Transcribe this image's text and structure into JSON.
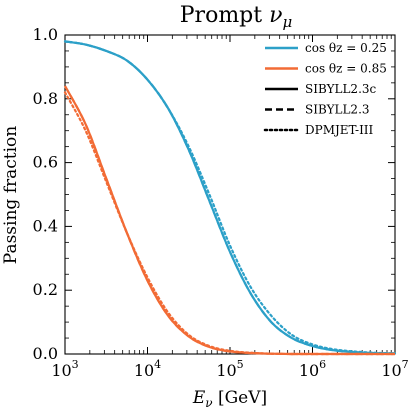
{
  "chart_data": {
    "type": "line",
    "title": "Prompt",
    "title_symbol": "ν",
    "title_subscript": "μ",
    "xlabel": "E",
    "xlabel_subscript": "ν",
    "xlabel_unit": " [GeV]",
    "ylabel": "Passing fraction",
    "xscale": "log",
    "xlim": [
      1000,
      10000000
    ],
    "ylim": [
      0.0,
      1.0
    ],
    "grid": false,
    "legend_position": "top-right",
    "x_ticks": [
      {
        "base": "10",
        "exp": "3",
        "value": 1000
      },
      {
        "base": "10",
        "exp": "4",
        "value": 10000
      },
      {
        "base": "10",
        "exp": "5",
        "value": 100000
      },
      {
        "base": "10",
        "exp": "6",
        "value": 1000000
      },
      {
        "base": "10",
        "exp": "7",
        "value": 10000000
      }
    ],
    "y_ticks": [
      {
        "label": "0.0",
        "value": 0.0
      },
      {
        "label": "0.2",
        "value": 0.2
      },
      {
        "label": "0.4",
        "value": 0.4
      },
      {
        "label": "0.6",
        "value": 0.6
      },
      {
        "label": "0.8",
        "value": 0.8
      },
      {
        "label": "1.0",
        "value": 1.0
      }
    ],
    "legend": [
      {
        "label": "cos θz = 0.25",
        "color": "#2ca0c8",
        "dash": "solid"
      },
      {
        "label": "cos θz = 0.85",
        "color": "#f26b35",
        "dash": "solid"
      },
      {
        "label": "SIBYLL2.3c",
        "color": "#000000",
        "dash": "solid"
      },
      {
        "label": "SIBYLL2.3",
        "color": "#000000",
        "dash": "dashed"
      },
      {
        "label": "DPMJET-III",
        "color": "#000000",
        "dash": "dotted"
      }
    ],
    "x": [
      1000,
      1778,
      3162,
      5623,
      10000,
      17783,
      31623,
      56234,
      100000,
      177828,
      316228,
      562341,
      1000000,
      1778279,
      3162278,
      5623413,
      10000000
    ],
    "series": [
      {
        "group": "cos θz = 0.25",
        "model": "SIBYLL2.3c",
        "color": "#2ca0c8",
        "dash": "solid",
        "values": [
          0.98,
          0.97,
          0.95,
          0.92,
          0.86,
          0.77,
          0.64,
          0.48,
          0.32,
          0.19,
          0.1,
          0.05,
          0.025,
          0.012,
          0.006,
          0.003,
          0.002
        ]
      },
      {
        "group": "cos θz = 0.25",
        "model": "SIBYLL2.3",
        "color": "#2ca0c8",
        "dash": "dashed",
        "values": [
          0.98,
          0.97,
          0.95,
          0.92,
          0.86,
          0.77,
          0.64,
          0.48,
          0.32,
          0.19,
          0.1,
          0.05,
          0.025,
          0.012,
          0.006,
          0.003,
          0.002
        ]
      },
      {
        "group": "cos θz = 0.25",
        "model": "DPMJET-III",
        "color": "#2ca0c8",
        "dash": "dotted",
        "values": [
          0.98,
          0.97,
          0.95,
          0.92,
          0.86,
          0.77,
          0.65,
          0.5,
          0.34,
          0.21,
          0.12,
          0.06,
          0.03,
          0.015,
          0.008,
          0.004,
          0.002
        ]
      },
      {
        "group": "cos θz = 0.85",
        "model": "SIBYLL2.3c",
        "color": "#f26b35",
        "dash": "solid",
        "values": [
          0.84,
          0.72,
          0.55,
          0.38,
          0.23,
          0.12,
          0.055,
          0.022,
          0.008,
          0.003,
          0.001,
          0.0,
          0.0,
          0.0,
          0.0,
          0.0,
          0.0
        ]
      },
      {
        "group": "cos θz = 0.85",
        "model": "SIBYLL2.3",
        "color": "#f26b35",
        "dash": "dashed",
        "values": [
          0.84,
          0.72,
          0.55,
          0.38,
          0.23,
          0.12,
          0.055,
          0.022,
          0.008,
          0.003,
          0.001,
          0.0,
          0.0,
          0.0,
          0.0,
          0.0,
          0.0
        ]
      },
      {
        "group": "cos θz = 0.85",
        "model": "DPMJET-III",
        "color": "#f26b35",
        "dash": "dotted",
        "values": [
          0.82,
          0.7,
          0.54,
          0.38,
          0.24,
          0.13,
          0.06,
          0.025,
          0.01,
          0.004,
          0.001,
          0.0,
          0.0,
          0.0,
          0.0,
          0.0,
          0.0
        ]
      }
    ]
  }
}
